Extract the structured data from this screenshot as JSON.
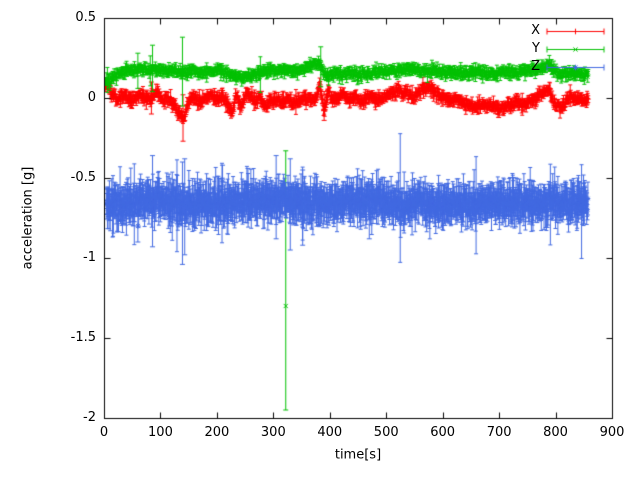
{
  "chart_data": {
    "type": "scatter",
    "subtype": "points-with-errorbars",
    "title": "",
    "xlabel": "time[s]",
    "ylabel": "acceleration [g]",
    "xlim": [
      0,
      900
    ],
    "ylim": [
      -2,
      0.5
    ],
    "xticks": [
      0,
      100,
      200,
      300,
      400,
      500,
      600,
      700,
      800,
      900
    ],
    "yticks": [
      0.5,
      0,
      -0.5,
      -1,
      -1.5,
      -2
    ],
    "grid": false,
    "background": "#ffffff",
    "border_color": "#000000",
    "legend_position": "top-right",
    "series": [
      {
        "name": "X",
        "color": "#ff0000",
        "marker": "plus",
        "x_start": 2,
        "x_end": 858,
        "x_step": 1,
        "seed": 11,
        "noise_sd": 0.012,
        "errorbar_base": 0.02,
        "errorbar_var": 0.012,
        "burst_prob": 0.01,
        "burst_mult": 2.0,
        "baseline_keyframes": [
          [
            0,
            0.09
          ],
          [
            8,
            0.07
          ],
          [
            15,
            0.02
          ],
          [
            25,
            -0.01
          ],
          [
            35,
            0.02
          ],
          [
            45,
            -0.02
          ],
          [
            55,
            0.0
          ],
          [
            65,
            0.03
          ],
          [
            75,
            -0.02
          ],
          [
            85,
            0.01
          ],
          [
            95,
            0.03
          ],
          [
            105,
            -0.02
          ],
          [
            115,
            0.0
          ],
          [
            125,
            -0.04
          ],
          [
            135,
            -0.1
          ],
          [
            142,
            -0.12
          ],
          [
            150,
            -0.02
          ],
          [
            160,
            0.0
          ],
          [
            170,
            -0.03
          ],
          [
            180,
            0.0
          ],
          [
            190,
            0.02
          ],
          [
            200,
            -0.01
          ],
          [
            210,
            0.01
          ],
          [
            220,
            -0.05
          ],
          [
            228,
            -0.09
          ],
          [
            235,
            0.02
          ],
          [
            242,
            -0.06
          ],
          [
            250,
            0.0
          ],
          [
            258,
            0.03
          ],
          [
            265,
            -0.02
          ],
          [
            275,
            0.0
          ],
          [
            285,
            -0.05
          ],
          [
            295,
            -0.02
          ],
          [
            305,
            0.0
          ],
          [
            315,
            -0.03
          ],
          [
            325,
            -0.01
          ],
          [
            335,
            -0.04
          ],
          [
            345,
            -0.02
          ],
          [
            355,
            0.0
          ],
          [
            365,
            -0.02
          ],
          [
            375,
            0.0
          ],
          [
            383,
            0.08
          ],
          [
            390,
            -0.09
          ],
          [
            397,
            0.05
          ],
          [
            405,
            -0.02
          ],
          [
            415,
            0.0
          ],
          [
            425,
            0.02
          ],
          [
            435,
            -0.01
          ],
          [
            445,
            0.01
          ],
          [
            455,
            -0.02
          ],
          [
            465,
            0.0
          ],
          [
            475,
            0.01
          ],
          [
            490,
            -0.01
          ],
          [
            505,
            0.02
          ],
          [
            520,
            0.05
          ],
          [
            535,
            0.03
          ],
          [
            550,
            0.01
          ],
          [
            565,
            0.06
          ],
          [
            575,
            0.07
          ],
          [
            585,
            0.04
          ],
          [
            595,
            0.01
          ],
          [
            605,
            0.0
          ],
          [
            615,
            -0.02
          ],
          [
            625,
            -0.01
          ],
          [
            640,
            -0.04
          ],
          [
            655,
            -0.06
          ],
          [
            670,
            -0.04
          ],
          [
            685,
            -0.05
          ],
          [
            700,
            -0.07
          ],
          [
            715,
            -0.05
          ],
          [
            730,
            -0.03
          ],
          [
            745,
            -0.04
          ],
          [
            760,
            -0.02
          ],
          [
            775,
            0.03
          ],
          [
            788,
            0.05
          ],
          [
            800,
            -0.04
          ],
          [
            812,
            -0.05
          ],
          [
            825,
            0.0
          ],
          [
            840,
            -0.01
          ],
          [
            858,
            -0.01
          ]
        ],
        "outliers": [
          {
            "x": 140,
            "y": -0.12,
            "lo": -0.27,
            "hi": 0.02
          },
          {
            "x": 84,
            "y": 0.0,
            "lo": -0.1,
            "hi": 0.1
          },
          {
            "x": 390,
            "y": -0.05,
            "lo": -0.14,
            "hi": 0.04
          }
        ]
      },
      {
        "name": "Y",
        "color": "#00c000",
        "marker": "cross",
        "x_start": 2,
        "x_end": 858,
        "x_step": 1,
        "seed": 22,
        "noise_sd": 0.012,
        "errorbar_base": 0.018,
        "errorbar_var": 0.01,
        "burst_prob": 0.008,
        "burst_mult": 3.0,
        "baseline_keyframes": [
          [
            0,
            0.1
          ],
          [
            10,
            0.11
          ],
          [
            20,
            0.14
          ],
          [
            30,
            0.16
          ],
          [
            45,
            0.17
          ],
          [
            60,
            0.18
          ],
          [
            80,
            0.17
          ],
          [
            100,
            0.18
          ],
          [
            120,
            0.17
          ],
          [
            140,
            0.16
          ],
          [
            160,
            0.17
          ],
          [
            180,
            0.16
          ],
          [
            200,
            0.17
          ],
          [
            215,
            0.16
          ],
          [
            230,
            0.14
          ],
          [
            245,
            0.13
          ],
          [
            260,
            0.14
          ],
          [
            275,
            0.16
          ],
          [
            290,
            0.17
          ],
          [
            305,
            0.17
          ],
          [
            320,
            0.18
          ],
          [
            335,
            0.16
          ],
          [
            350,
            0.17
          ],
          [
            360,
            0.19
          ],
          [
            370,
            0.21
          ],
          [
            380,
            0.22
          ],
          [
            388,
            0.16
          ],
          [
            395,
            0.14
          ],
          [
            405,
            0.16
          ],
          [
            420,
            0.15
          ],
          [
            440,
            0.16
          ],
          [
            460,
            0.15
          ],
          [
            480,
            0.16
          ],
          [
            500,
            0.17
          ],
          [
            520,
            0.17
          ],
          [
            540,
            0.18
          ],
          [
            560,
            0.17
          ],
          [
            580,
            0.17
          ],
          [
            600,
            0.16
          ],
          [
            620,
            0.16
          ],
          [
            640,
            0.15
          ],
          [
            660,
            0.16
          ],
          [
            680,
            0.15
          ],
          [
            700,
            0.16
          ],
          [
            720,
            0.16
          ],
          [
            740,
            0.17
          ],
          [
            760,
            0.17
          ],
          [
            775,
            0.19
          ],
          [
            790,
            0.2
          ],
          [
            800,
            0.17
          ],
          [
            810,
            0.14
          ],
          [
            820,
            0.16
          ],
          [
            835,
            0.15
          ],
          [
            858,
            0.15
          ]
        ],
        "outliers": [
          {
            "x": 322,
            "y": -1.3,
            "lo": -1.95,
            "hi": -0.33
          },
          {
            "x": 86,
            "y": 0.18,
            "lo": 0.04,
            "hi": 0.33
          },
          {
            "x": 139,
            "y": 0.17,
            "lo": -0.05,
            "hi": 0.38
          },
          {
            "x": 60,
            "y": 0.17,
            "lo": 0.06,
            "hi": 0.28
          },
          {
            "x": 384,
            "y": 0.2,
            "lo": 0.07,
            "hi": 0.32
          }
        ]
      },
      {
        "name": "Z",
        "color": "#4169e1",
        "marker": "star",
        "x_start": 4,
        "x_end": 858,
        "x_step": 0.7,
        "seed": 33,
        "noise_sd": 0.035,
        "errorbar_base": 0.055,
        "errorbar_var": 0.04,
        "burst_prob": 0.02,
        "burst_mult": 2.2,
        "baseline_keyframes": [
          [
            0,
            -0.66
          ],
          [
            40,
            -0.66
          ],
          [
            80,
            -0.64
          ],
          [
            120,
            -0.66
          ],
          [
            160,
            -0.67
          ],
          [
            200,
            -0.66
          ],
          [
            240,
            -0.65
          ],
          [
            280,
            -0.64
          ],
          [
            320,
            -0.64
          ],
          [
            360,
            -0.66
          ],
          [
            400,
            -0.66
          ],
          [
            440,
            -0.65
          ],
          [
            480,
            -0.65
          ],
          [
            520,
            -0.66
          ],
          [
            560,
            -0.66
          ],
          [
            600,
            -0.67
          ],
          [
            640,
            -0.66
          ],
          [
            680,
            -0.65
          ],
          [
            720,
            -0.65
          ],
          [
            760,
            -0.66
          ],
          [
            800,
            -0.65
          ],
          [
            858,
            -0.65
          ]
        ],
        "outliers": [
          {
            "x": 86,
            "y": -0.62,
            "lo": -0.93,
            "hi": -0.36
          },
          {
            "x": 139,
            "y": -0.7,
            "lo": -1.04,
            "hi": -0.4
          },
          {
            "x": 143,
            "y": -0.65,
            "lo": -0.98,
            "hi": -0.38
          },
          {
            "x": 305,
            "y": -0.6,
            "lo": -0.88,
            "hi": -0.36
          },
          {
            "x": 330,
            "y": -0.64,
            "lo": -0.95,
            "hi": -0.38
          },
          {
            "x": 352,
            "y": -0.67,
            "lo": -0.92,
            "hi": -0.45
          },
          {
            "x": 60,
            "y": -0.8,
            "lo": -0.9,
            "hi": -0.7
          },
          {
            "x": 210,
            "y": -0.52,
            "lo": -0.62,
            "hi": -0.42
          },
          {
            "x": 255,
            "y": -0.55,
            "lo": -0.68,
            "hi": -0.44
          },
          {
            "x": 470,
            "y": -0.75,
            "lo": -0.88,
            "hi": -0.62
          }
        ]
      }
    ]
  }
}
